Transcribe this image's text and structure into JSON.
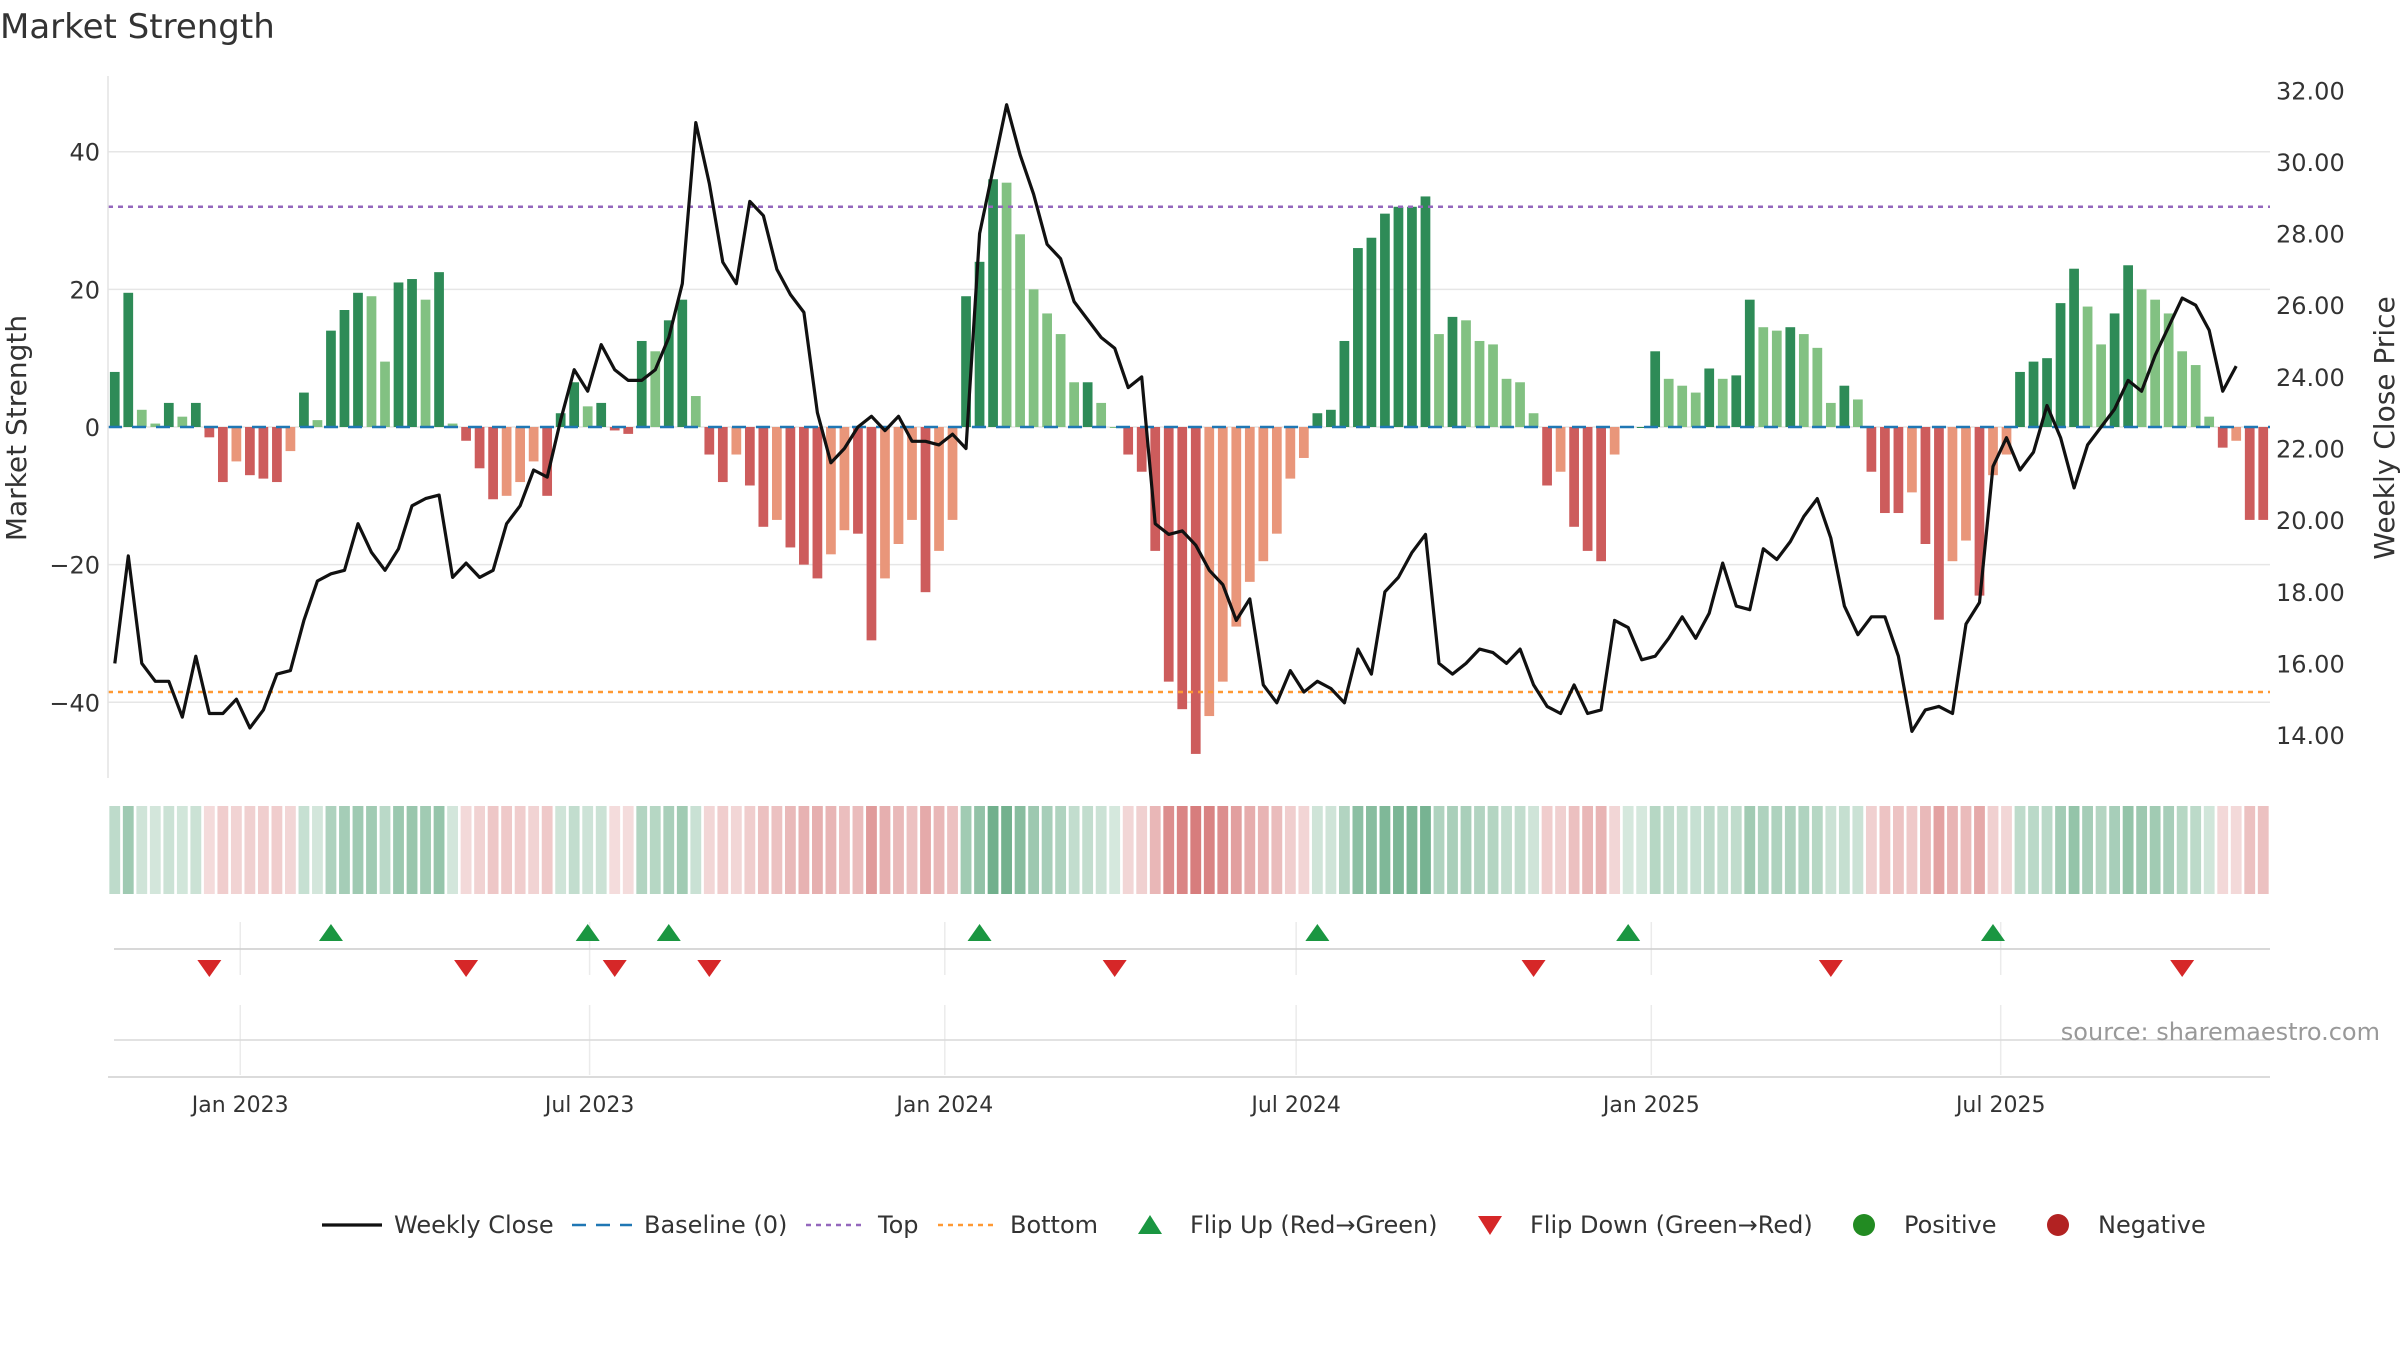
{
  "chart_data": {
    "type": "bar",
    "title": "Market Strength",
    "ylabel_left": "Market Strength",
    "ylabel_right": "Weekly Close Price",
    "ylim_left": [
      -51,
      51
    ],
    "ylim_right": [
      12.8,
      32.4
    ],
    "y_ticks_left": [
      -40,
      -20,
      0,
      20,
      40
    ],
    "y_tick_labels_left": [
      "−40",
      "−20",
      "0",
      "20",
      "40"
    ],
    "y_ticks_right": [
      14,
      16,
      18,
      20,
      22,
      24,
      26,
      28,
      30,
      32
    ],
    "y_tick_labels_right": [
      "14.00",
      "16.00",
      "18.00",
      "20.00",
      "22.00",
      "24.00",
      "26.00",
      "28.00",
      "30.00",
      "32.00"
    ],
    "x_ticks": [
      "2023-01-01",
      "2023-07-01",
      "2024-01-01",
      "2024-07-01",
      "2025-01-01",
      "2025-07-01"
    ],
    "x_tick_labels": [
      "Jan 2023",
      "Jul 2023",
      "Jan 2024",
      "Jul 2024",
      "Jan 2025",
      "Jul 2025"
    ],
    "first_week": "2022-10-28",
    "top_threshold": 32,
    "bottom_threshold": -38.5,
    "colors": {
      "pos_strong": "#2e8b57",
      "pos_light": "#82c182",
      "neg_strong": "#cd5c5c",
      "neg_light": "#e9967a",
      "price_line": "#111111",
      "baseline": "#1f77b4",
      "top": "#9467bd",
      "bottom": "#ff9933",
      "flip_up": "#1a9641",
      "flip_down": "#d62728",
      "positive_dot": "#228b22",
      "negative_dot": "#b22222"
    },
    "strength": [
      8,
      19.5,
      2.5,
      0.5,
      3.5,
      1.5,
      3.5,
      -1.5,
      -8,
      -5,
      -7,
      -7.5,
      -8,
      -3.5,
      5,
      1,
      14,
      17,
      19.5,
      19,
      9.5,
      21,
      21.5,
      18.5,
      22.5,
      0.5,
      -2,
      -6,
      -10.5,
      -10,
      -8,
      -5,
      -10,
      2,
      6.5,
      3,
      3.5,
      -0.5,
      -1,
      12.5,
      11,
      15.5,
      18.5,
      4.5,
      -4,
      -8,
      -4,
      -8.5,
      -14.5,
      -13.5,
      -17.5,
      -20,
      -22,
      -18.5,
      -15,
      -15.5,
      -31,
      -22,
      -17,
      -13.5,
      -24,
      -18,
      -13.5,
      19,
      24,
      36,
      35.5,
      28,
      20,
      16.5,
      13.5,
      6.5,
      6.5,
      3.5,
      0,
      -4,
      -6.5,
      -18,
      -37,
      -41,
      -47.5,
      -42,
      -37,
      -29,
      -22.5,
      -19.5,
      -15.5,
      -7.5,
      -4.5,
      2,
      2.5,
      12.5,
      26,
      27.5,
      31,
      32,
      32,
      33.5,
      13.5,
      16,
      15.5,
      12.5,
      12,
      7,
      6.5,
      2,
      -8.5,
      -6.5,
      -14.5,
      -18,
      -19.5,
      -4,
      0,
      0,
      11,
      7,
      6,
      5,
      8.5,
      7,
      7.5,
      18.5,
      14.5,
      14,
      14.5,
      13.5,
      11.5,
      3.5,
      6,
      4,
      -6.5,
      -12.5,
      -12.5,
      -9.5,
      -17,
      -28,
      -19.5,
      -16.5,
      -24.5,
      -7,
      -4,
      8,
      9.5,
      10,
      18,
      23,
      17.5,
      12,
      16.5,
      23.5,
      20,
      18.5,
      16.5,
      11,
      9,
      1.5,
      -3,
      -2,
      -13.5,
      -13.5
    ],
    "close": [
      16,
      19,
      16,
      15.5,
      15.5,
      14.5,
      16.2,
      14.6,
      14.6,
      15,
      14.2,
      14.7,
      15.7,
      15.8,
      17.2,
      18.3,
      18.5,
      18.6,
      19.9,
      19.1,
      18.6,
      19.2,
      20.4,
      20.6,
      20.7,
      18.4,
      18.8,
      18.4,
      18.6,
      19.9,
      20.4,
      21.4,
      21.2,
      22.8,
      24.2,
      23.6,
      24.9,
      24.2,
      23.9,
      23.9,
      24.2,
      25.1,
      26.6,
      31.1,
      29.4,
      27.2,
      26.6,
      28.9,
      28.5,
      27,
      26.3,
      25.8,
      23,
      21.6,
      22,
      22.6,
      22.9,
      22.5,
      22.9,
      22.2,
      22.2,
      22.1,
      22.4,
      22,
      28,
      29.8,
      31.6,
      30.2,
      29.1,
      27.7,
      27.3,
      26.1,
      25.6,
      25.1,
      24.8,
      23.7,
      24,
      19.9,
      19.6,
      19.7,
      19.3,
      18.6,
      18.2,
      17.2,
      17.8,
      15.4,
      14.9,
      15.8,
      15.2,
      15.5,
      15.3,
      14.9,
      16.4,
      15.7,
      18,
      18.4,
      19.1,
      19.6,
      16,
      15.7,
      16,
      16.4,
      16.3,
      16,
      16.4,
      15.4,
      14.8,
      14.6,
      15.4,
      14.6,
      14.7,
      17.2,
      17,
      16.1,
      16.2,
      16.7,
      17.3,
      16.7,
      17.4,
      18.8,
      17.6,
      17.5,
      19.2,
      18.9,
      19.4,
      20.1,
      20.6,
      19.5,
      17.6,
      16.8,
      17.3,
      17.3,
      16.2,
      14.1,
      14.7,
      14.8,
      14.6,
      17.1,
      17.7,
      21.5,
      22.3,
      21.4,
      21.9,
      23.2,
      22.3,
      20.9,
      22.1,
      22.6,
      23.1,
      23.9,
      23.6,
      24.6,
      25.4,
      26.2,
      26,
      25.3,
      23.6,
      24.3
    ],
    "flip_up_weeks": [
      16,
      35,
      41,
      64,
      89,
      112,
      139
    ],
    "flip_down_weeks": [
      7,
      26,
      37,
      44,
      74,
      105,
      127,
      153
    ],
    "legend": [
      "Weekly Close",
      "Baseline (0)",
      "Top",
      "Bottom",
      "Flip Up (Red→Green)",
      "Flip Down (Green→Red)",
      "Positive",
      "Negative"
    ],
    "legend_placement": "bottom-center",
    "source": "source: sharemaestro.com",
    "grid": true
  }
}
